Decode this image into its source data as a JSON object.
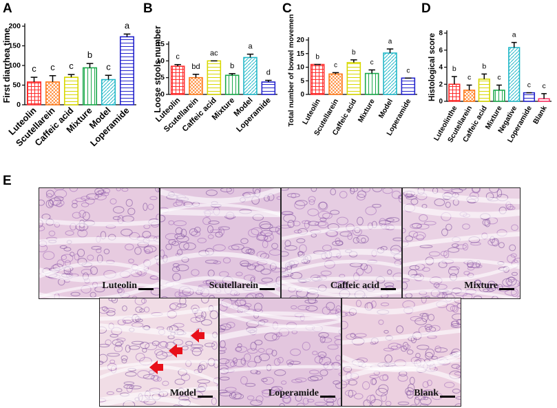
{
  "panel_letters": {
    "a": "A",
    "b": "B",
    "c": "C",
    "d": "D",
    "e": "E"
  },
  "chart_data": [
    {
      "panel": "A",
      "type": "bar",
      "ylabel": "First diarrhea time",
      "ylim": [
        0,
        200
      ],
      "yticks": [
        0,
        50,
        100,
        150,
        200
      ],
      "categories": [
        "Luteolin",
        "Scutellarein",
        "Caffeic acid",
        "Mixture",
        "Model",
        "Loperamide"
      ],
      "values": [
        58,
        58,
        70,
        94,
        64,
        173
      ],
      "errors": [
        12,
        16,
        7,
        11,
        11,
        7
      ],
      "letters": [
        "c",
        "c",
        "c",
        "b",
        "c",
        "a"
      ],
      "colors": [
        "#ff2a2a",
        "#ff7a1a",
        "#d8d800",
        "#1aa84a",
        "#22b8c8",
        "#2222cc"
      ],
      "patterns": [
        "grid",
        "check",
        "hlines",
        "vlines",
        "diag",
        "hlines"
      ]
    },
    {
      "panel": "B",
      "type": "bar",
      "ylabel": "Loose stools number",
      "ylim": [
        0,
        15
      ],
      "yticks": [
        0,
        5,
        10,
        15
      ],
      "categories": [
        "Luteolin",
        "Scutellarein",
        "Caffeic acid",
        "Mixture",
        "Model",
        "Loperamide"
      ],
      "values": [
        8.4,
        5.0,
        10.0,
        5.7,
        11.0,
        3.7
      ],
      "errors": [
        0.5,
        1.0,
        0.0,
        0.5,
        1.0,
        0.5
      ],
      "letters": [
        "c",
        "bd",
        "ac",
        "b",
        "a",
        "d"
      ],
      "colors": [
        "#ff2a2a",
        "#ff7a1a",
        "#d8d800",
        "#1aa84a",
        "#22b8c8",
        "#2222cc"
      ],
      "patterns": [
        "grid",
        "check",
        "hlines",
        "vlines",
        "diag",
        "hlines"
      ]
    },
    {
      "panel": "C",
      "type": "bar",
      "ylabel": "Total number of bowel movements",
      "ylim": [
        0,
        20
      ],
      "yticks": [
        0,
        5,
        10,
        15,
        20
      ],
      "categories": [
        "Luteolin",
        "Scutellarein",
        "Caffeic acid",
        "Mixture",
        "Model",
        "Loperamide"
      ],
      "values": [
        11.0,
        7.5,
        11.7,
        7.7,
        15.2,
        6.0
      ],
      "errors": [
        0.0,
        0.5,
        1.0,
        1.3,
        1.5,
        0.0
      ],
      "letters": [
        "b",
        "c",
        "b",
        "c",
        "a",
        "c"
      ],
      "colors": [
        "#ff2a2a",
        "#ff7a1a",
        "#d8d800",
        "#1aa84a",
        "#22b8c8",
        "#2222cc"
      ],
      "patterns": [
        "grid",
        "check",
        "hlines",
        "vlines",
        "diag",
        "hlines"
      ]
    },
    {
      "panel": "D",
      "type": "bar",
      "ylabel": "Histological score",
      "ylim": [
        0,
        8
      ],
      "yticks": [
        0,
        2,
        4,
        6,
        8
      ],
      "categories": [
        "Luteolinthe",
        "Scutellarein",
        "Caffeic acid",
        "Mixture",
        "Negative",
        "Loperamide",
        "Blank"
      ],
      "values": [
        2.0,
        1.3,
        2.6,
        1.3,
        6.3,
        1.0,
        0.3
      ],
      "errors": [
        0.9,
        0.6,
        0.6,
        0.6,
        0.6,
        0.0,
        0.6
      ],
      "letters": [
        "b",
        "c",
        "b",
        "c",
        "a",
        "c",
        "c"
      ],
      "colors": [
        "#ff2a2a",
        "#ff7a1a",
        "#d8d800",
        "#1aa84a",
        "#22b8c8",
        "#2222cc",
        "#ff3366"
      ],
      "patterns": [
        "grid",
        "check",
        "hlines",
        "vlines",
        "diag",
        "hlines",
        "hlines"
      ]
    }
  ],
  "micrographs": [
    {
      "label": "Luteolin",
      "bg": "#e7cbe0"
    },
    {
      "label": "Scutellarein",
      "bg": "#e2c6df"
    },
    {
      "label": "Caffeic acid",
      "bg": "#e6cde2"
    },
    {
      "label": "Mixture",
      "bg": "#ead2e4"
    },
    {
      "label": "Model",
      "bg": "#f1dde6"
    },
    {
      "label": "Loperamide",
      "bg": "#e3c6de"
    },
    {
      "label": "Blank",
      "bg": "#ecd0e0"
    }
  ],
  "arrow_color": "#e8101a"
}
